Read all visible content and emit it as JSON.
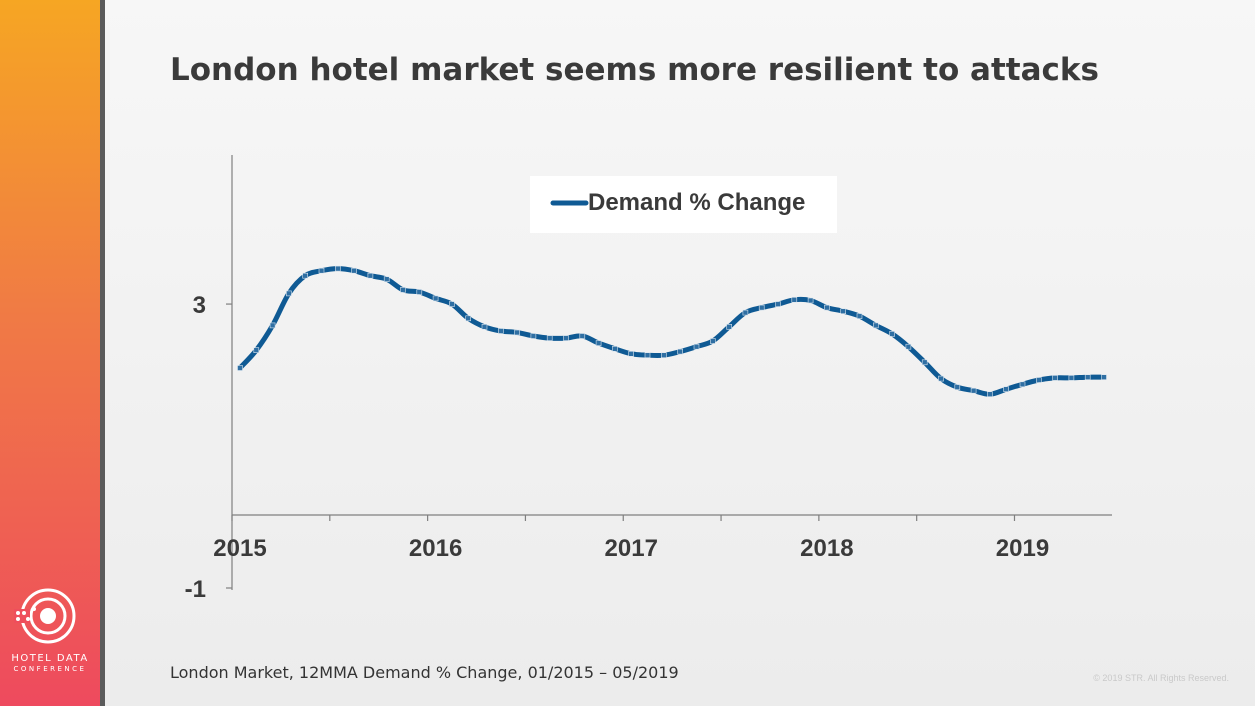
{
  "slide": {
    "title": "London hotel market seems more resilient to attacks",
    "source_note": "London Market, 12MMA Demand % Change, 01/2015 – 05/2019",
    "copyright": "© 2019 STR. All Rights Reserved."
  },
  "logo": {
    "icon": "hotel-data-conference-logo-icon",
    "line1": "HOTEL DATA",
    "line2": "CONFERENCE"
  },
  "colors": {
    "sidebar_top": "#f6a623",
    "sidebar_bottom": "#ee4a5e",
    "series": "#0f5a94"
  },
  "chart_data": {
    "type": "line",
    "title": "",
    "xlabel": "",
    "ylabel": "",
    "y_tick_labels": [
      "3",
      "-1"
    ],
    "ylim": [
      -1,
      5.1
    ],
    "xlim": [
      0,
      53
    ],
    "x_tick_labels": [
      "2015",
      "2016",
      "2017",
      "2018",
      "2019"
    ],
    "legend": "top-center",
    "grid": false,
    "series": [
      {
        "name": "Demand % Change",
        "color": "#0f5a94",
        "x": [
          0,
          1,
          2,
          3,
          4,
          5,
          6,
          7,
          8,
          9,
          10,
          11,
          12,
          13,
          14,
          15,
          16,
          17,
          18,
          19,
          20,
          21,
          22,
          23,
          24,
          25,
          26,
          27,
          28,
          29,
          30,
          31,
          32,
          33,
          34,
          35,
          36,
          37,
          38,
          39,
          40,
          41,
          42,
          43,
          44,
          45,
          46,
          47,
          48,
          49,
          50,
          51,
          52,
          53
        ],
        "values": [
          2.1,
          2.35,
          2.7,
          3.15,
          3.4,
          3.47,
          3.5,
          3.47,
          3.4,
          3.35,
          3.2,
          3.17,
          3.08,
          3.0,
          2.8,
          2.68,
          2.62,
          2.6,
          2.55,
          2.52,
          2.52,
          2.55,
          2.45,
          2.37,
          2.3,
          2.28,
          2.28,
          2.33,
          2.4,
          2.48,
          2.68,
          2.88,
          2.95,
          3.0,
          3.06,
          3.05,
          2.95,
          2.9,
          2.83,
          2.7,
          2.58,
          2.4,
          2.18,
          1.95,
          1.83,
          1.78,
          1.73,
          1.8,
          1.87,
          1.93,
          1.96,
          1.96,
          1.97,
          1.97
        ]
      }
    ]
  }
}
